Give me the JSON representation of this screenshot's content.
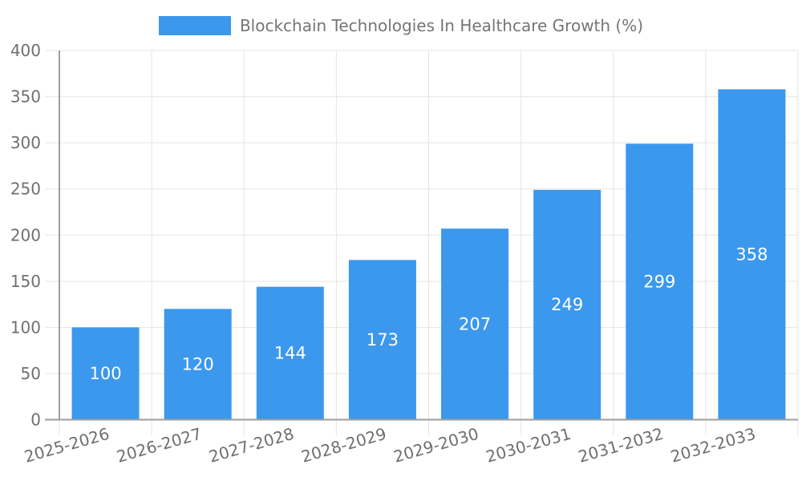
{
  "chart_data": {
    "type": "bar",
    "title": "Blockchain Technologies In Healthcare Growth (%)",
    "categories": [
      "2025-2026",
      "2026-2027",
      "2027-2028",
      "2028-2029",
      "2029-2030",
      "2030-2031",
      "2031-2032",
      "2032-2033"
    ],
    "values": [
      100,
      120,
      144,
      173,
      207,
      249,
      299,
      358
    ],
    "bar_value_labels": [
      "100",
      "120",
      "144",
      "173",
      "207",
      "249",
      "299",
      "358"
    ],
    "xlabel": "",
    "ylabel": "",
    "ylim": [
      0,
      400
    ],
    "yticks": [
      0,
      50,
      100,
      150,
      200,
      250,
      300,
      350,
      400
    ],
    "grid": true,
    "legend_position": "top",
    "x_label_rotation_deg": -16,
    "colors": {
      "bar": "#3b98ec",
      "bar_label": "#ffffff",
      "axis_text": "#6f6f6f",
      "title_text": "#757575",
      "axis_line": "#9e9e9e",
      "grid": "#e5e5e5",
      "background": "#ffffff"
    }
  }
}
